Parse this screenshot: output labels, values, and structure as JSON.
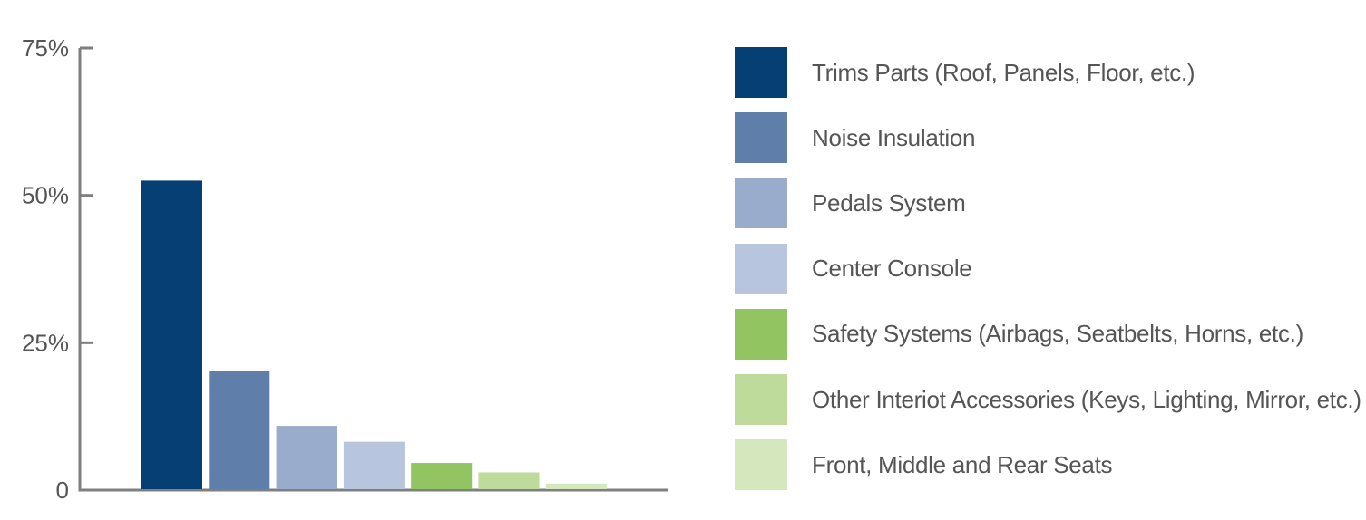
{
  "chart_data": {
    "type": "bar",
    "title": "",
    "xlabel": "",
    "ylabel": "",
    "ylim": [
      0,
      75
    ],
    "yticks": [
      {
        "value": 0,
        "label": "0"
      },
      {
        "value": 25,
        "label": "25%"
      },
      {
        "value": 50,
        "label": "50%"
      },
      {
        "value": 75,
        "label": "75%"
      }
    ],
    "grid": false,
    "legend_position": "right",
    "categories": [
      "Trims Parts (Roof, Panels, Floor, etc.)",
      "Noise Insulation",
      "Pedals System",
      "Center Console",
      "Safety Systems (Airbags, Seatbelts, Horns, etc.)",
      "Other Interiot Accessories (Keys, Lighting, Mirror, etc.)",
      "Front, Middle and Rear Seats"
    ],
    "values": [
      52.5,
      20.2,
      10.9,
      8.2,
      4.6,
      3.0,
      1.1
    ],
    "colors": [
      "#063f73",
      "#5f7ea9",
      "#9aaccc",
      "#b8c5df",
      "#92c462",
      "#bedb9c",
      "#d4e7bd"
    ]
  }
}
